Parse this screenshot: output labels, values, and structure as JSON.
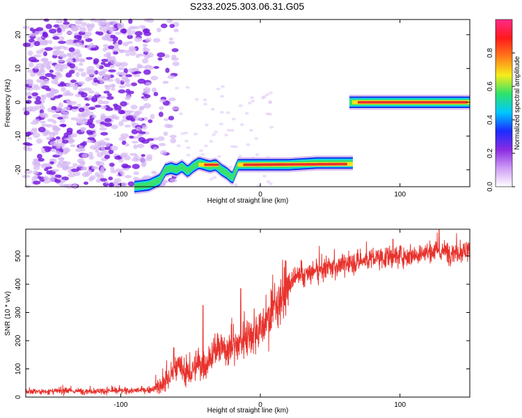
{
  "title": "S233.2025.303.06.31.G05",
  "colors": {
    "snr_line": "#e8322c",
    "scatter_dark": "#7a1fe0",
    "scatter_light": "#d6b8f4",
    "track_core": "#e8322c",
    "track_mid": "#ffe31a",
    "track_green": "#38e06e",
    "track_cyan": "#12d8e6",
    "track_blue": "#1230e8"
  },
  "chart_data": [
    {
      "type": "heatmap",
      "title": "S233.2025.303.06.31.G05",
      "xlabel": "Height of straight line (km)",
      "ylabel": "Frequency (Hz)",
      "xlim": [
        -168,
        150
      ],
      "ylim": [
        -25,
        24.5
      ],
      "x_ticks": [
        -100,
        0,
        100
      ],
      "x_tick_labels": [
        "-100",
        "0",
        "100"
      ],
      "y_ticks": [
        -20,
        -10,
        0,
        10,
        20
      ],
      "y_tick_labels": [
        "-20",
        "-10",
        "0",
        "10",
        "20"
      ],
      "noise_region_x": [
        -168,
        -60
      ],
      "track": {
        "x": [
          -90,
          -80,
          -72,
          -68,
          -64,
          -60,
          -56,
          -52,
          -48,
          -44,
          -40,
          -36,
          -32,
          -28,
          -24,
          -20,
          -16,
          -12,
          0,
          20,
          40,
          66
        ],
        "y": [
          -25,
          -24.5,
          -23,
          -20,
          -19.5,
          -20,
          -19,
          -20.5,
          -19,
          -18,
          -18.5,
          -19,
          -18.5,
          -20,
          -21,
          -22.5,
          -18.5,
          -18.5,
          -18.5,
          -18.5,
          -18,
          -18
        ],
        "segment2_x": [
          64,
          150
        ],
        "segment2_y": [
          0,
          0
        ]
      },
      "colorbar": {
        "label": "Normalized spectral amplitude",
        "range": [
          0,
          1
        ],
        "ticks": [
          0.0,
          0.2,
          0.4,
          0.6,
          0.8
        ],
        "tick_labels": [
          "0.0",
          "0.2",
          "0.4",
          "0.6",
          "0.8"
        ],
        "colormap": [
          "#ffffff",
          "#ce9df5",
          "#8a2be2",
          "#1a2cff",
          "#00c8ff",
          "#2ee36a",
          "#f7ec1a",
          "#ff7a1a",
          "#ff1a1a",
          "#ff2a88"
        ]
      }
    },
    {
      "type": "line",
      "xlabel": "Height of straight line (km)",
      "ylabel": "SNR (10 * v/v)",
      "xlim": [
        -168,
        150
      ],
      "ylim": [
        0,
        595
      ],
      "x_ticks": [
        -100,
        0,
        100
      ],
      "x_tick_labels": [
        "-100",
        "0",
        "100"
      ],
      "y_ticks": [
        0,
        100,
        200,
        300,
        400,
        500
      ],
      "y_tick_labels": [
        "0",
        "100",
        "200",
        "300",
        "400",
        "500"
      ],
      "series": [
        {
          "name": "SNR",
          "trend_x": [
            -168,
            -100,
            -80,
            -70,
            -65,
            -60,
            -55,
            -50,
            -45,
            -40,
            -35,
            -30,
            -25,
            -20,
            -15,
            -10,
            -5,
            0,
            5,
            10,
            15,
            20,
            25,
            30,
            40,
            50,
            60,
            70,
            80,
            90,
            100,
            110,
            120,
            130,
            140,
            150
          ],
          "trend_y": [
            20,
            22,
            25,
            40,
            70,
            110,
            90,
            80,
            120,
            110,
            150,
            170,
            170,
            180,
            190,
            220,
            230,
            240,
            270,
            320,
            360,
            390,
            420,
            430,
            445,
            460,
            470,
            480,
            490,
            495,
            500,
            505,
            510,
            515,
            515,
            520
          ],
          "spikes_x": [
            -62,
            -41,
            -14,
            95,
            128
          ],
          "spikes_y": [
            175,
            325,
            385,
            560,
            595
          ]
        }
      ]
    }
  ]
}
